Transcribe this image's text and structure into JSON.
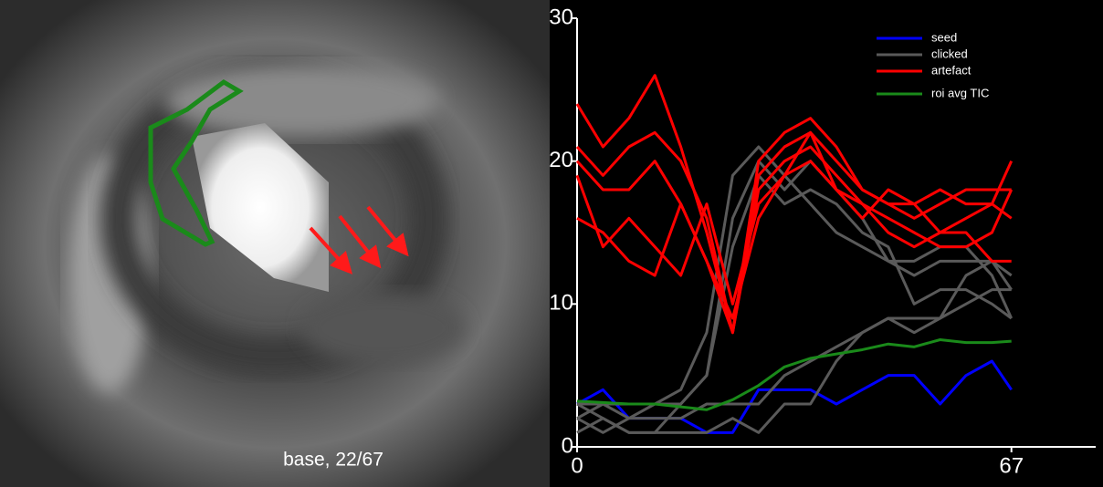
{
  "image": {
    "label": "base, 22/67"
  },
  "chart_data": {
    "type": "line",
    "x": [
      0,
      4,
      8,
      12,
      16,
      20,
      24,
      28,
      32,
      36,
      40,
      44,
      48,
      52,
      56,
      60,
      64,
      67
    ],
    "xlim": [
      0,
      80
    ],
    "xticks": [
      0,
      67
    ],
    "ylim": [
      0,
      30
    ],
    "yticks": [
      0,
      10,
      20,
      30
    ],
    "legend": "upper right",
    "series": [
      {
        "name": "seed",
        "color": "#0000ff",
        "values": [
          [
            3,
            4,
            2,
            2,
            2,
            1,
            1,
            4,
            4,
            4,
            3,
            4,
            5,
            5,
            3,
            5,
            6,
            4
          ]
        ]
      },
      {
        "name": "clicked",
        "color": "#5a5a5a",
        "values": [
          [
            2,
            1,
            2,
            3,
            4,
            8,
            19,
            21,
            19,
            17,
            15,
            14,
            13,
            13,
            14,
            14,
            12,
            9
          ],
          [
            3,
            2,
            1,
            1,
            3,
            5,
            16,
            20,
            18,
            20,
            18,
            16,
            13,
            12,
            13,
            13,
            13,
            12
          ],
          [
            2,
            3,
            3,
            3,
            3,
            5,
            14,
            19,
            17,
            18,
            17,
            15,
            14,
            10,
            11,
            11,
            10,
            9
          ],
          [
            1,
            2,
            1,
            1,
            1,
            1,
            2,
            1,
            3,
            3,
            6,
            8,
            9,
            8,
            9,
            12,
            13,
            11
          ],
          [
            3,
            3,
            2,
            2,
            2,
            3,
            3,
            3,
            5,
            6,
            7,
            8,
            9,
            9,
            9,
            10,
            11,
            11
          ]
        ]
      },
      {
        "name": "artefact",
        "color": "#ff0000",
        "values": [
          [
            24,
            21,
            23,
            26,
            21,
            15,
            8,
            20,
            22,
            23,
            21,
            18,
            17,
            17,
            15,
            15,
            13,
            13
          ],
          [
            21,
            19,
            21,
            22,
            20,
            16,
            8,
            19,
            21,
            22,
            20,
            18,
            17,
            16,
            17,
            18,
            18,
            18
          ],
          [
            20,
            18,
            18,
            20,
            17,
            13,
            8,
            18,
            20,
            21,
            19,
            17,
            15,
            14,
            15,
            16,
            17,
            16
          ],
          [
            19,
            14,
            16,
            14,
            12,
            17,
            10,
            17,
            19,
            20,
            18,
            16,
            18,
            17,
            18,
            17,
            17,
            20
          ],
          [
            16,
            15,
            13,
            12,
            17,
            13,
            9,
            16,
            19,
            22,
            18,
            17,
            16,
            15,
            14,
            14,
            15,
            18
          ]
        ]
      },
      {
        "name": "roi avg TIC",
        "color": "#1a8a1a",
        "values": [
          [
            3.2,
            3.1,
            3,
            3,
            2.8,
            2.6,
            3.3,
            4.3,
            5.6,
            6.2,
            6.5,
            6.8,
            7.2,
            7,
            7.5,
            7.3,
            7.3,
            7.4
          ]
        ]
      }
    ]
  }
}
